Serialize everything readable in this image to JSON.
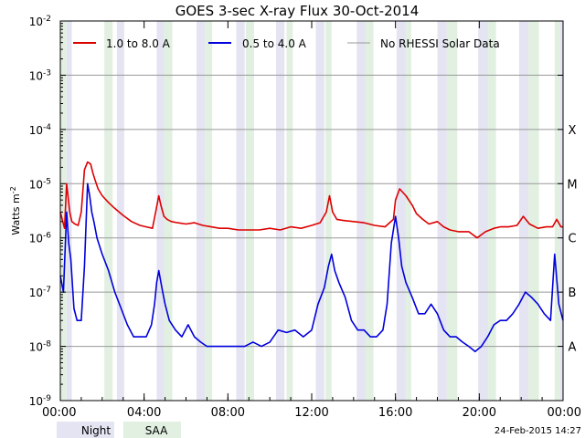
{
  "chart_data": {
    "type": "line",
    "title": "GOES 3-sec X-ray Flux   30-Oct-2014",
    "ylabel": "Watts m",
    "ylabel_sup": "-2",
    "xlim_hours": [
      0,
      24
    ],
    "ylog": true,
    "ylim": [
      1e-09,
      0.01
    ],
    "grid": true,
    "legend_position": "top-left",
    "xticks": [
      "00:00",
      "04:00",
      "08:00",
      "12:00",
      "16:00",
      "20:00",
      "00:00"
    ],
    "yticks": [
      {
        "value": 0.01,
        "mantissa": "10",
        "exp": "-2"
      },
      {
        "value": 0.001,
        "mantissa": "10",
        "exp": "-3"
      },
      {
        "value": 0.0001,
        "mantissa": "10",
        "exp": "-4"
      },
      {
        "value": 1e-05,
        "mantissa": "10",
        "exp": "-5"
      },
      {
        "value": 1e-06,
        "mantissa": "10",
        "exp": "-6"
      },
      {
        "value": 1e-07,
        "mantissa": "10",
        "exp": "-7"
      },
      {
        "value": 1e-08,
        "mantissa": "10",
        "exp": "-8"
      },
      {
        "value": 1e-09,
        "mantissa": "10",
        "exp": "-9"
      }
    ],
    "flare_classes": [
      {
        "label": "X",
        "value": 0.0001
      },
      {
        "label": "M",
        "value": 1e-05
      },
      {
        "label": "C",
        "value": 1e-06
      },
      {
        "label": "B",
        "value": 1e-07
      },
      {
        "label": "A",
        "value": 1e-08
      }
    ],
    "night_bands_hours": [
      [
        0.3,
        0.55
      ],
      [
        2.7,
        3.05
      ],
      [
        4.6,
        4.95
      ],
      [
        6.5,
        6.9
      ],
      [
        8.4,
        8.8
      ],
      [
        10.3,
        10.7
      ],
      [
        12.2,
        12.6
      ],
      [
        14.15,
        14.55
      ],
      [
        16.05,
        16.5
      ],
      [
        18.0,
        18.45
      ],
      [
        19.95,
        20.4
      ],
      [
        21.9,
        22.35
      ],
      [
        23.85,
        24.0
      ]
    ],
    "saa_bands_hours": [
      [
        0.0,
        0.3
      ],
      [
        2.1,
        2.5
      ],
      [
        4.95,
        5.35
      ],
      [
        6.9,
        7.25
      ],
      [
        8.85,
        9.25
      ],
      [
        10.8,
        11.1
      ],
      [
        12.65,
        12.95
      ],
      [
        14.55,
        14.95
      ],
      [
        16.5,
        16.75
      ],
      [
        18.45,
        18.95
      ],
      [
        20.4,
        20.8
      ],
      [
        22.35,
        22.85
      ],
      [
        23.6,
        23.85
      ]
    ],
    "series": [
      {
        "name": "1.0 to 8.0 A",
        "color": "#dd0000",
        "x_hours": [
          0.0,
          0.2,
          0.3,
          0.45,
          0.55,
          0.7,
          0.85,
          1.0,
          1.15,
          1.3,
          1.45,
          1.55,
          1.65,
          1.8,
          2.0,
          2.3,
          2.6,
          3.0,
          3.4,
          3.8,
          4.1,
          4.4,
          4.55,
          4.7,
          4.8,
          4.95,
          5.1,
          5.3,
          5.6,
          6.0,
          6.4,
          6.8,
          7.2,
          7.6,
          8.0,
          8.5,
          9.0,
          9.5,
          10.0,
          10.5,
          11.0,
          11.5,
          12.0,
          12.4,
          12.7,
          12.85,
          13.0,
          13.2,
          13.5,
          14.0,
          14.5,
          15.0,
          15.5,
          15.9,
          16.0,
          16.2,
          16.5,
          16.8,
          17.0,
          17.3,
          17.6,
          18.0,
          18.3,
          18.6,
          19.0,
          19.5,
          19.9,
          20.3,
          20.7,
          21.0,
          21.4,
          21.8,
          22.1,
          22.4,
          22.8,
          23.2,
          23.5,
          23.7,
          23.9,
          24.0
        ],
        "y": [
          3e-06,
          1.5e-06,
          1e-05,
          3e-06,
          2e-06,
          1.8e-06,
          1.7e-06,
          3e-06,
          1.8e-05,
          2.5e-05,
          2.3e-05,
          1.6e-05,
          1.2e-05,
          8e-06,
          6e-06,
          4.5e-06,
          3.5e-06,
          2.6e-06,
          2e-06,
          1.7e-06,
          1.6e-06,
          1.5e-06,
          3e-06,
          6e-06,
          4e-06,
          2.5e-06,
          2.2e-06,
          2e-06,
          1.9e-06,
          1.8e-06,
          1.9e-06,
          1.7e-06,
          1.6e-06,
          1.5e-06,
          1.5e-06,
          1.4e-06,
          1.4e-06,
          1.4e-06,
          1.5e-06,
          1.4e-06,
          1.6e-06,
          1.5e-06,
          1.7e-06,
          1.9e-06,
          3e-06,
          6e-06,
          3e-06,
          2.2e-06,
          2.1e-06,
          2e-06,
          1.9e-06,
          1.7e-06,
          1.6e-06,
          2.2e-06,
          5e-06,
          8e-06,
          6e-06,
          4e-06,
          2.8e-06,
          2.2e-06,
          1.8e-06,
          2e-06,
          1.6e-06,
          1.4e-06,
          1.3e-06,
          1.3e-06,
          1e-06,
          1.3e-06,
          1.5e-06,
          1.6e-06,
          1.6e-06,
          1.7e-06,
          2.5e-06,
          1.8e-06,
          1.5e-06,
          1.6e-06,
          1.6e-06,
          2.2e-06,
          1.6e-06,
          1.6e-06
        ]
      },
      {
        "name": "0.5 to 4.0 A",
        "color": "#0000dd",
        "x_hours": [
          0.0,
          0.15,
          0.3,
          0.4,
          0.5,
          0.65,
          0.8,
          1.0,
          1.15,
          1.3,
          1.4,
          1.5,
          1.6,
          1.75,
          2.0,
          2.3,
          2.6,
          2.9,
          3.2,
          3.5,
          3.8,
          4.1,
          4.35,
          4.5,
          4.6,
          4.7,
          4.85,
          5.0,
          5.2,
          5.5,
          5.8,
          6.1,
          6.4,
          6.7,
          7.0,
          7.3,
          7.6,
          8.0,
          8.4,
          8.8,
          9.2,
          9.6,
          10.0,
          10.4,
          10.8,
          11.2,
          11.6,
          12.0,
          12.3,
          12.6,
          12.8,
          12.95,
          13.1,
          13.3,
          13.6,
          13.9,
          14.2,
          14.5,
          14.8,
          15.1,
          15.4,
          15.6,
          15.8,
          16.0,
          16.15,
          16.3,
          16.5,
          16.8,
          17.1,
          17.4,
          17.7,
          18.0,
          18.3,
          18.6,
          18.9,
          19.2,
          19.5,
          19.8,
          20.1,
          20.4,
          20.7,
          21.0,
          21.3,
          21.6,
          21.9,
          22.2,
          22.5,
          22.8,
          23.1,
          23.4,
          23.6,
          23.8,
          24.0
        ],
        "y": [
          2e-07,
          1e-07,
          3e-06,
          8e-07,
          4e-07,
          5e-08,
          3e-08,
          3e-08,
          3e-07,
          1e-05,
          6e-06,
          3e-06,
          2e-06,
          1e-06,
          5e-07,
          2.5e-07,
          1e-07,
          5e-08,
          2.5e-08,
          1.5e-08,
          1.5e-08,
          1.5e-08,
          2.5e-08,
          6e-08,
          1.5e-07,
          2.5e-07,
          1.2e-07,
          6e-08,
          3e-08,
          2e-08,
          1.5e-08,
          2.5e-08,
          1.5e-08,
          1.2e-08,
          1e-08,
          1e-08,
          1e-08,
          1e-08,
          1e-08,
          1e-08,
          1.2e-08,
          1e-08,
          1.2e-08,
          2e-08,
          1.8e-08,
          2e-08,
          1.5e-08,
          2e-08,
          6e-08,
          1.2e-07,
          3e-07,
          5e-07,
          2.5e-07,
          1.5e-07,
          8e-08,
          3e-08,
          2e-08,
          2e-08,
          1.5e-08,
          1.5e-08,
          2e-08,
          6e-08,
          8e-07,
          2.5e-06,
          1e-06,
          3e-07,
          1.5e-07,
          8e-08,
          4e-08,
          4e-08,
          6e-08,
          4e-08,
          2e-08,
          1.5e-08,
          1.5e-08,
          1.2e-08,
          1e-08,
          8e-09,
          1e-08,
          1.5e-08,
          2.5e-08,
          3e-08,
          3e-08,
          4e-08,
          6e-08,
          1e-07,
          8e-08,
          6e-08,
          4e-08,
          3e-08,
          5e-07,
          6e-08,
          3e-08
        ]
      },
      {
        "name": "No RHESSI Solar Data",
        "color": "#999999"
      }
    ]
  },
  "footer": {
    "night_label": "Night",
    "saa_label": "SAA",
    "timestamp": "24-Feb-2015 14:27"
  }
}
